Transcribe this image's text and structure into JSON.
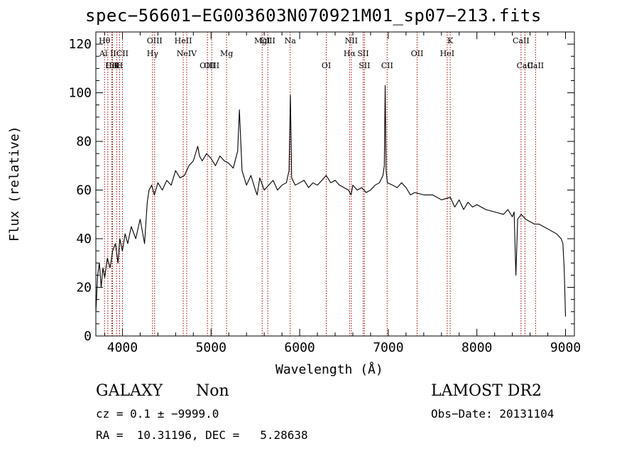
{
  "chart_data": {
    "type": "line",
    "title": "spec−56601−EG003603N070921M01_sp07−213.fits",
    "xlabel": "Wavelength (Å)",
    "ylabel": "Flux (relative)",
    "xlim": [
      3700,
      9100
    ],
    "ylim": [
      0,
      125
    ],
    "xticks": [
      4000,
      5000,
      6000,
      7000,
      8000,
      9000
    ],
    "yticks": [
      0,
      20,
      40,
      60,
      80,
      100,
      120
    ],
    "grid": false,
    "series": [
      {
        "x": [
          3700,
          3720,
          3740,
          3760,
          3780,
          3800,
          3830,
          3860,
          3890,
          3920,
          3950,
          3970,
          4000,
          4030,
          4060,
          4100,
          4150,
          4200,
          4250,
          4280,
          4300,
          4330,
          4360,
          4400,
          4450,
          4500,
          4550,
          4600,
          4650,
          4700,
          4750,
          4800,
          4850,
          4870,
          4900,
          4950,
          5000,
          5050,
          5100,
          5150,
          5200,
          5250,
          5300,
          5320,
          5350,
          5400,
          5450,
          5500,
          5520,
          5550,
          5600,
          5650,
          5700,
          5750,
          5800,
          5850,
          5880,
          5895,
          5910,
          5950,
          6000,
          6050,
          6100,
          6150,
          6200,
          6250,
          6300,
          6350,
          6400,
          6450,
          6500,
          6550,
          6580,
          6600,
          6650,
          6700,
          6750,
          6800,
          6850,
          6900,
          6940,
          6955,
          6965,
          6975,
          6990,
          7050,
          7100,
          7150,
          7200,
          7250,
          7300,
          7400,
          7500,
          7600,
          7700,
          7750,
          7800,
          7850,
          7900,
          7950,
          8000,
          8100,
          8200,
          8300,
          8350,
          8400,
          8420,
          8440,
          8460,
          8500,
          8550,
          8600,
          8650,
          8700,
          8750,
          8800,
          8850,
          8900,
          8950,
          8970,
          8985,
          9000
        ],
        "y": [
          10,
          25,
          30,
          20,
          28,
          24,
          32,
          28,
          35,
          38,
          30,
          40,
          35,
          42,
          38,
          45,
          40,
          48,
          38,
          55,
          60,
          62,
          58,
          63,
          60,
          64,
          62,
          68,
          65,
          66,
          70,
          72,
          78,
          74,
          72,
          75,
          73,
          70,
          74,
          72,
          71,
          69,
          76,
          93,
          68,
          62,
          66,
          60,
          58,
          65,
          60,
          62,
          64,
          60,
          62,
          63,
          68,
          99,
          65,
          62,
          63,
          64,
          61,
          63,
          62,
          64,
          66,
          63,
          64,
          62,
          61,
          60,
          58,
          62,
          60,
          61,
          59,
          60,
          62,
          63,
          66,
          70,
          103,
          68,
          63,
          62,
          61,
          63,
          61,
          58,
          59,
          58,
          58,
          56,
          57,
          53,
          56,
          52,
          55,
          53,
          54,
          52,
          51,
          50,
          52,
          49,
          51,
          25,
          48,
          50,
          48,
          47,
          46,
          46,
          45,
          44,
          43,
          42,
          40,
          38,
          28,
          8
        ]
      }
    ],
    "lines": [
      {
        "x": 3798,
        "label": "Hθ",
        "row": 1
      },
      {
        "x": 3835,
        "label": "Al II",
        "row": 2
      },
      {
        "x": 3880,
        "label": "CII",
        "row": 3
      },
      {
        "x": 3888,
        "label": "HeI",
        "row": 3
      },
      {
        "x": 3934,
        "label": "K",
        "row": 3
      },
      {
        "x": 3968,
        "label": "H",
        "row": 3
      },
      {
        "x": 4000,
        "label": "CII",
        "row": 2
      },
      {
        "x": 4363,
        "label": "OIII",
        "row": 1
      },
      {
        "x": 4340,
        "label": "Hγ",
        "row": 2
      },
      {
        "x": 4686,
        "label": "HeII",
        "row": 1
      },
      {
        "x": 4725,
        "label": "NeIV",
        "row": 2
      },
      {
        "x": 4959,
        "label": "OIII",
        "row": 3
      },
      {
        "x": 5007,
        "label": "OIII",
        "row": 3
      },
      {
        "x": 5175,
        "label": "Mg",
        "row": 2
      },
      {
        "x": 5577,
        "label": "MgI",
        "row": 1
      },
      {
        "x": 5640,
        "label": "CIII",
        "row": 1
      },
      {
        "x": 5893,
        "label": "Na",
        "row": 1
      },
      {
        "x": 6300,
        "label": "OI",
        "row": 3
      },
      {
        "x": 6563,
        "label": "Hα",
        "row": 2
      },
      {
        "x": 6583,
        "label": "NII",
        "row": 1
      },
      {
        "x": 6716,
        "label": "SII",
        "row": 2
      },
      {
        "x": 6731,
        "label": "SII",
        "row": 3
      },
      {
        "x": 6987,
        "label": "CII",
        "row": 3
      },
      {
        "x": 7325,
        "label": "OII",
        "row": 2
      },
      {
        "x": 7665,
        "label": "HeI",
        "row": 2
      },
      {
        "x": 7699,
        "label": "K",
        "row": 1
      },
      {
        "x": 8498,
        "label": "CaII",
        "row": 1
      },
      {
        "x": 8542,
        "label": "CaII",
        "row": 3
      },
      {
        "x": 8662,
        "label": "CaII",
        "row": 3
      }
    ]
  },
  "info": {
    "classification": "GALAXY",
    "subclass": "Non",
    "survey": "LAMOST DR2",
    "cz": "cz = 0.1 ± −9999.0",
    "obs_date": "Obs−Date: 20131104",
    "coords": "RA =  10.31196, DEC =   5.28638"
  }
}
